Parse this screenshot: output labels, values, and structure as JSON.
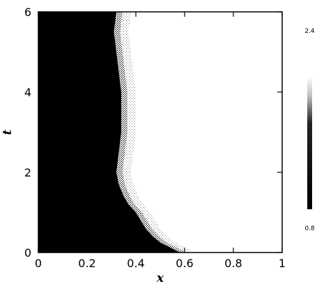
{
  "chart_data": {
    "type": "heatmap",
    "title": "",
    "xlabel": "x",
    "ylabel": "t",
    "xlim": [
      0,
      1
    ],
    "ylim": [
      0,
      6
    ],
    "x_ticks": [
      "0",
      "0.2",
      "0.4",
      "0.6",
      "0.8",
      "1"
    ],
    "y_ticks": [
      "0",
      "2",
      "4",
      "6"
    ],
    "x_tick_values": [
      0,
      0.2,
      0.4,
      0.6,
      0.8,
      1
    ],
    "y_tick_values": [
      0,
      2,
      4,
      6
    ],
    "colorbar": {
      "min_label": "0.8",
      "max_label": "2.4",
      "min": 0.8,
      "max": 2.4
    },
    "colormap": "gray-inverted: high values black, low values white",
    "front": [
      {
        "t": 0.0,
        "x": 0.58
      },
      {
        "t": 0.1,
        "x": 0.55
      },
      {
        "t": 0.25,
        "x": 0.5
      },
      {
        "t": 0.4,
        "x": 0.47
      },
      {
        "t": 0.6,
        "x": 0.44
      },
      {
        "t": 0.8,
        "x": 0.42
      },
      {
        "t": 1.0,
        "x": 0.4
      },
      {
        "t": 1.2,
        "x": 0.37
      },
      {
        "t": 1.4,
        "x": 0.35
      },
      {
        "t": 1.7,
        "x": 0.33
      },
      {
        "t": 2.0,
        "x": 0.32
      },
      {
        "t": 2.5,
        "x": 0.33
      },
      {
        "t": 3.0,
        "x": 0.34
      },
      {
        "t": 3.5,
        "x": 0.34
      },
      {
        "t": 4.0,
        "x": 0.34
      },
      {
        "t": 4.5,
        "x": 0.33
      },
      {
        "t": 5.0,
        "x": 0.32
      },
      {
        "t": 5.5,
        "x": 0.31
      },
      {
        "t": 6.0,
        "x": 0.32
      }
    ],
    "background_value": 0.8,
    "core_value": 2.4
  }
}
